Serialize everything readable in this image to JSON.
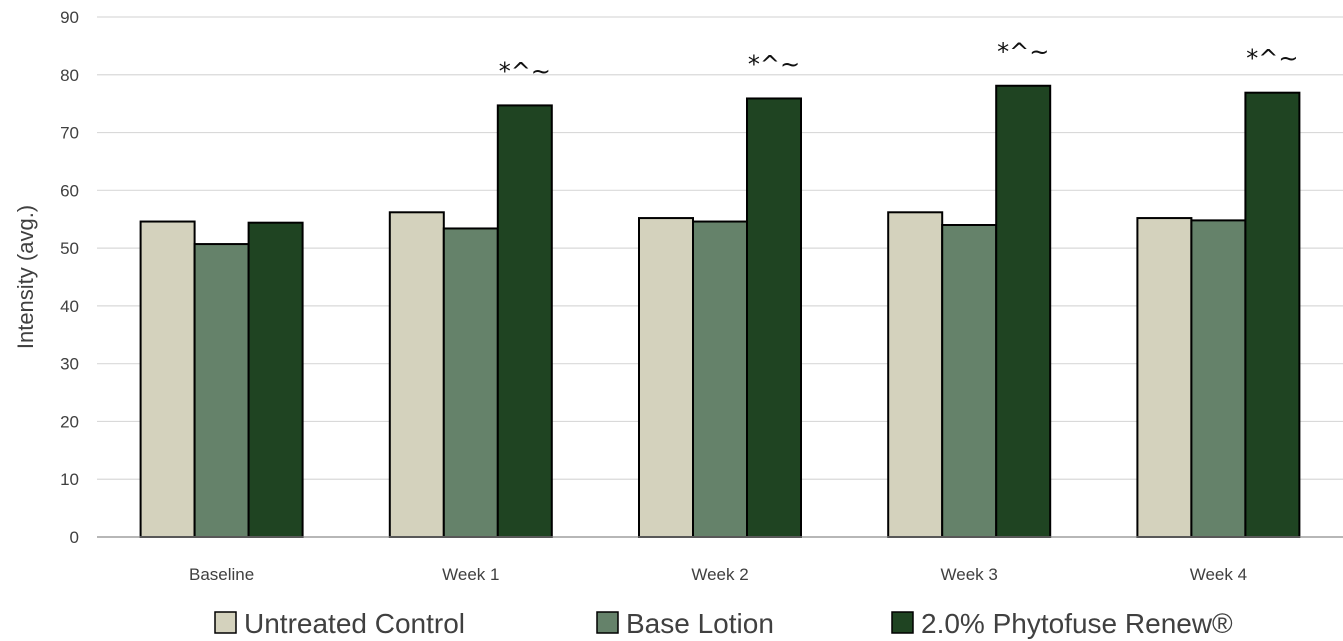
{
  "chart_data": {
    "type": "bar",
    "ylabel": "Intensity (avg.)",
    "xlabel": "",
    "ylim": [
      0,
      90
    ],
    "yticks": [
      0,
      10,
      20,
      30,
      40,
      50,
      60,
      70,
      80,
      90
    ],
    "grid": true,
    "legend_position": "bottom",
    "categories": [
      "Baseline",
      "Week 1",
      "Week 2",
      "Week 3",
      "Week 4"
    ],
    "series": [
      {
        "name": "Untreated Control",
        "color": "#d4d2bd",
        "values": [
          54.6,
          56.2,
          55.2,
          56.2,
          55.2
        ]
      },
      {
        "name": "Base Lotion",
        "color": "#65826a",
        "values": [
          50.7,
          53.4,
          54.6,
          54.0,
          54.8
        ]
      },
      {
        "name": "2.0% Phytofuse Renew®",
        "color": "#1f4422",
        "values": [
          54.4,
          74.7,
          75.9,
          78.1,
          76.9
        ]
      }
    ],
    "annotations": [
      {
        "category": "Week 1",
        "series": 2,
        "text": "*^~"
      },
      {
        "category": "Week 2",
        "series": 2,
        "text": "*^~"
      },
      {
        "category": "Week 3",
        "series": 2,
        "text": "*^~"
      },
      {
        "category": "Week 4",
        "series": 2,
        "text": "*^~"
      }
    ]
  }
}
